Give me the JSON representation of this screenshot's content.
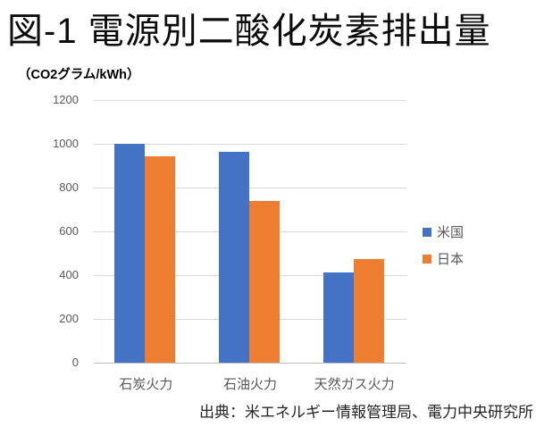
{
  "title": "図-1 電源別二酸化炭素排出量",
  "unit_label": "（CO2グラム/kWh）",
  "source_note": "出典：米エネルギー情報管理局、電力中央研究所",
  "colors": {
    "series_us": "#4472C4",
    "series_japan": "#ED7D31",
    "gridline": "#D9D9D9",
    "axis_line": "#BFBFBF",
    "tick_text": "#595959",
    "title_text": "#0D0D0D"
  },
  "chart_data": {
    "type": "bar",
    "title": "図-1 電源別二酸化炭素排出量",
    "ylabel": "（CO2グラム/kWh）",
    "categories": [
      "石炭火力",
      "石油火力",
      "天然ガス火力"
    ],
    "series": [
      {
        "name": "米国",
        "color": "#4472C4",
        "values": [
          1000,
          965,
          413
        ]
      },
      {
        "name": "日本",
        "color": "#ED7D31",
        "values": [
          943,
          738,
          474
        ]
      }
    ],
    "ylim": [
      0,
      1200
    ],
    "yticks": [
      0,
      200,
      400,
      600,
      800,
      1000,
      1200
    ],
    "grid": true,
    "legend_position": "right",
    "annotations": [
      "出典：米エネルギー情報管理局、電力中央研究所"
    ]
  }
}
